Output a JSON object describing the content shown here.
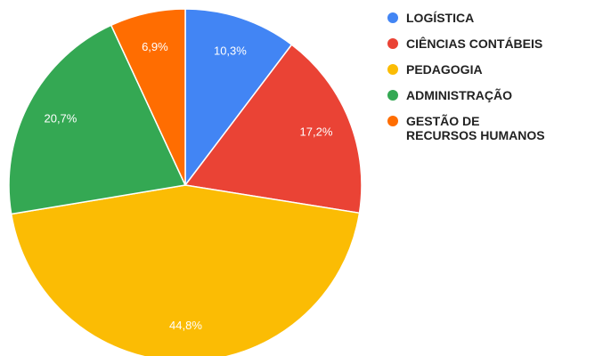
{
  "chart_data": {
    "type": "pie",
    "categories": [
      "LOGÍSTICA",
      "CIÊNCIAS CONTÁBEIS",
      "PEDAGOGIA",
      "ADMINISTRAÇÃO",
      "GESTÃO DE\nRECURSOS HUMANOS"
    ],
    "values": [
      10.3,
      17.2,
      44.8,
      20.7,
      6.9
    ],
    "value_labels": [
      "10,3%",
      "17,2%",
      "44,8%",
      "20,7%",
      "6,9%"
    ],
    "colors": [
      "#4285f4",
      "#ea4335",
      "#fbbc04",
      "#34a853",
      "#ff6d01"
    ],
    "legend": "right"
  }
}
